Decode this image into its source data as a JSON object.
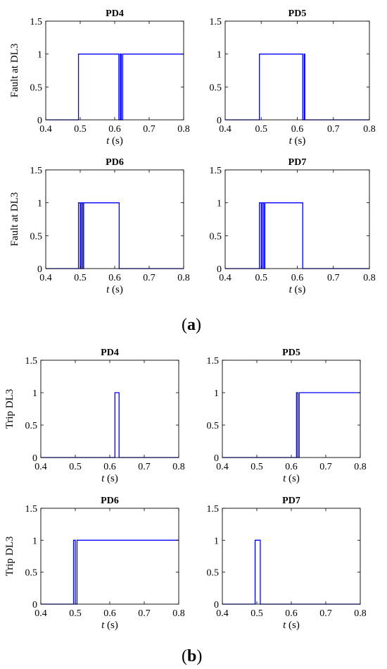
{
  "panel_labels": [
    {
      "open": "(",
      "letter": "a",
      "close": ")"
    },
    {
      "open": "(",
      "letter": "b",
      "close": ")"
    }
  ],
  "chart_data": [
    {
      "type": "line",
      "panel": "a",
      "title": "PD4",
      "ylabel": "Fault at DL3",
      "xlabel_var": "t",
      "xlabel_unit": " (s)",
      "xlim": [
        0.4,
        0.8
      ],
      "ylim": [
        0,
        1.5
      ],
      "xticks": [
        "0.4",
        "0.5",
        "0.6",
        "0.7",
        "0.8"
      ],
      "yticks": [
        "0",
        "0.5",
        "1",
        "1.5"
      ],
      "grid": false,
      "color": "#0000ff",
      "series": [
        {
          "x": [
            0.4,
            0.495,
            0.495,
            0.612,
            0.612,
            0.616,
            0.616,
            0.619,
            0.619,
            0.623,
            0.623,
            0.8
          ],
          "y": [
            0,
            0,
            1,
            1,
            0,
            0,
            1,
            1,
            0,
            0,
            1,
            1
          ]
        }
      ]
    },
    {
      "type": "line",
      "panel": "a",
      "title": "PD5",
      "ylabel": "",
      "xlabel_var": "t",
      "xlabel_unit": " (s)",
      "xlim": [
        0.4,
        0.8
      ],
      "ylim": [
        0,
        1.5
      ],
      "xticks": [
        "0.4",
        "0.5",
        "0.6",
        "0.7",
        "0.8"
      ],
      "yticks": [
        "0",
        "0.5",
        "1",
        "1.5"
      ],
      "grid": false,
      "color": "#0000ff",
      "series": [
        {
          "x": [
            0.4,
            0.495,
            0.495,
            0.615,
            0.615,
            0.619,
            0.619,
            0.621,
            0.621,
            0.625,
            0.625,
            0.8
          ],
          "y": [
            0,
            0,
            1,
            1,
            0,
            0,
            1,
            1,
            0,
            0,
            0,
            0
          ]
        }
      ]
    },
    {
      "type": "line",
      "panel": "a",
      "title": "PD6",
      "ylabel": "Fault at DL3",
      "xlabel_var": "t",
      "xlabel_unit": " (s)",
      "xlim": [
        0.4,
        0.8
      ],
      "ylim": [
        0,
        1.5
      ],
      "xticks": [
        "0.4",
        "0.5",
        "0.6",
        "0.7",
        "0.8"
      ],
      "yticks": [
        "0",
        "0.5",
        "1",
        "1.5"
      ],
      "grid": false,
      "color": "#0000ff",
      "series": [
        {
          "x": [
            0.4,
            0.495,
            0.495,
            0.5,
            0.5,
            0.503,
            0.503,
            0.507,
            0.507,
            0.51,
            0.51,
            0.613,
            0.613,
            0.8
          ],
          "y": [
            0,
            0,
            1,
            1,
            0,
            0,
            1,
            1,
            0,
            0,
            1,
            1,
            0,
            0
          ]
        }
      ]
    },
    {
      "type": "line",
      "panel": "a",
      "title": "PD7",
      "ylabel": "",
      "xlabel_var": "t",
      "xlabel_unit": " (s)",
      "xlim": [
        0.4,
        0.8
      ],
      "ylim": [
        0,
        1.5
      ],
      "xticks": [
        "0.4",
        "0.5",
        "0.6",
        "0.7",
        "0.8"
      ],
      "yticks": [
        "0",
        "0.5",
        "1",
        "1.5"
      ],
      "grid": false,
      "color": "#0000ff",
      "series": [
        {
          "x": [
            0.4,
            0.495,
            0.495,
            0.5,
            0.5,
            0.503,
            0.503,
            0.507,
            0.507,
            0.51,
            0.51,
            0.615,
            0.615,
            0.8
          ],
          "y": [
            0,
            0,
            1,
            1,
            0,
            0,
            1,
            1,
            0,
            0,
            1,
            1,
            0,
            0
          ]
        }
      ]
    },
    {
      "type": "line",
      "panel": "b",
      "title": "PD4",
      "ylabel": "Trip DL3",
      "xlabel_var": "t",
      "xlabel_unit": " (s)",
      "xlim": [
        0.4,
        0.8
      ],
      "ylim": [
        0,
        1.5
      ],
      "xticks": [
        "0.4",
        "0.5",
        "0.6",
        "0.7",
        "0.8"
      ],
      "yticks": [
        "0",
        "0.5",
        "1",
        "1.5"
      ],
      "grid": false,
      "color": "#0000ff",
      "series": [
        {
          "x": [
            0.4,
            0.615,
            0.615,
            0.627,
            0.627,
            0.8
          ],
          "y": [
            0,
            0,
            1,
            1,
            0,
            0
          ]
        }
      ]
    },
    {
      "type": "line",
      "panel": "b",
      "title": "PD5",
      "ylabel": "",
      "xlabel_var": "t",
      "xlabel_unit": " (s)",
      "xlim": [
        0.4,
        0.8
      ],
      "ylim": [
        0,
        1.5
      ],
      "xticks": [
        "0.4",
        "0.5",
        "0.6",
        "0.7",
        "0.8"
      ],
      "yticks": [
        "0",
        "0.5",
        "1",
        "1.5"
      ],
      "grid": false,
      "color": "#0000ff",
      "series": [
        {
          "x": [
            0.4,
            0.615,
            0.615,
            0.619,
            0.619,
            0.623,
            0.623,
            0.8
          ],
          "y": [
            0,
            0,
            1,
            1,
            0,
            0,
            1,
            1
          ]
        }
      ]
    },
    {
      "type": "line",
      "panel": "b",
      "title": "PD6",
      "ylabel": "Trip DL3",
      "xlabel_var": "t",
      "xlabel_unit": " (s)",
      "xlim": [
        0.4,
        0.8
      ],
      "ylim": [
        0,
        1.5
      ],
      "xticks": [
        "0.4",
        "0.5",
        "0.6",
        "0.7",
        "0.8"
      ],
      "yticks": [
        "0",
        "0.5",
        "1",
        "1.5"
      ],
      "grid": false,
      "color": "#0000ff",
      "series": [
        {
          "x": [
            0.4,
            0.495,
            0.495,
            0.5,
            0.5,
            0.505,
            0.505,
            0.8
          ],
          "y": [
            0,
            0,
            1,
            1,
            0,
            0,
            1,
            1
          ]
        }
      ]
    },
    {
      "type": "line",
      "panel": "b",
      "title": "PD7",
      "ylabel": "",
      "xlabel_var": "t",
      "xlabel_unit": " (s)",
      "xlim": [
        0.4,
        0.8
      ],
      "ylim": [
        0,
        1.5
      ],
      "xticks": [
        "0.4",
        "0.5",
        "0.6",
        "0.7",
        "0.8"
      ],
      "yticks": [
        "0",
        "0.5",
        "1",
        "1.5"
      ],
      "grid": false,
      "color": "#0000ff",
      "series": [
        {
          "x": [
            0.4,
            0.495,
            0.495,
            0.51,
            0.51,
            0.8
          ],
          "y": [
            0,
            0,
            1,
            1,
            0,
            0
          ]
        }
      ]
    }
  ]
}
